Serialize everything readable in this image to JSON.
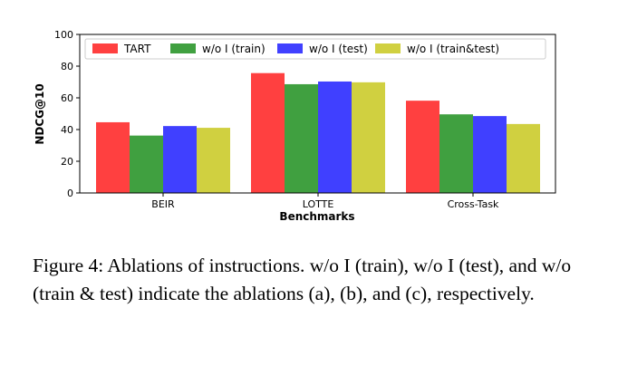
{
  "chart_data": {
    "type": "bar",
    "categories": [
      "BEIR",
      "LOTTE",
      "Cross-Task"
    ],
    "series": [
      {
        "name": "TART",
        "color": "#ff4040",
        "values": [
          44.6,
          75.6,
          58.2
        ]
      },
      {
        "name": "w/o I (train)",
        "color": "#40a040",
        "values": [
          36.2,
          68.6,
          49.6
        ]
      },
      {
        "name": "w/o I (test)",
        "color": "#4040ff",
        "values": [
          42.2,
          70.3,
          48.5
        ]
      },
      {
        "name": "w/o I (train&test)",
        "color": "#d0d040",
        "values": [
          41.1,
          69.8,
          43.5
        ]
      }
    ],
    "xlabel": "Benchmarks",
    "ylabel": "NDCG@10",
    "ylim": [
      0,
      100
    ],
    "yticks": [
      0,
      20,
      40,
      60,
      80,
      100
    ],
    "grid": false,
    "legend": "top"
  },
  "caption": "Figure 4: Ablations of instructions. w/o I (train), w/o I (test), and w/o (train & test) indicate the ablations (a), (b), and (c), respectively."
}
